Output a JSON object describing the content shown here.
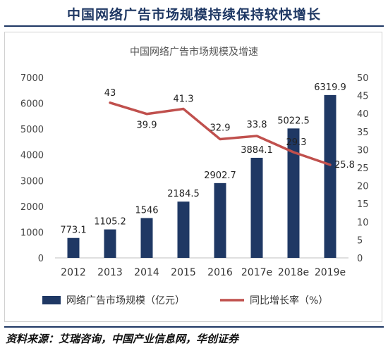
{
  "page": {
    "heading": "中国网络广告市场规模持续保持较快增长",
    "source": "资料来源：艾瑞咨询，中国产业信息网，华创证券"
  },
  "chart_data": {
    "type": "bar",
    "title": "中国网络广告市场规模及增速",
    "categories": [
      "2012",
      "2013",
      "2014",
      "2015",
      "2016",
      "2017e",
      "2018e",
      "2019e"
    ],
    "series": [
      {
        "name": "网络广告市场规模（亿元）",
        "type": "bar",
        "axis": "left",
        "color": "#1f3864",
        "values": [
          773.1,
          1105.2,
          1546,
          2184.5,
          2902.7,
          3884.1,
          5022.5,
          6319.9
        ],
        "labels": [
          "773.1",
          "1105.2",
          "1546",
          "2184.5",
          "2902.7",
          "3884.1",
          "5022.5",
          "6319.9"
        ]
      },
      {
        "name": "同比增长率（%）",
        "type": "line",
        "axis": "right",
        "color": "#c0504d",
        "values": [
          null,
          43,
          39.9,
          41.3,
          32.9,
          33.8,
          29.3,
          25.8
        ],
        "labels": [
          "",
          "43",
          "39.9",
          "41.3",
          "32.9",
          "33.8",
          "29.3",
          "25.8"
        ]
      }
    ],
    "y_left": {
      "min": 0,
      "max": 7000,
      "ticks": [
        0,
        1000,
        2000,
        3000,
        4000,
        5000,
        6000,
        7000
      ]
    },
    "y_right": {
      "min": 0,
      "max": 50,
      "ticks": [
        0,
        5,
        10,
        15,
        20,
        25,
        30,
        35,
        40,
        45,
        50
      ]
    },
    "grid": false,
    "legend_position": "bottom"
  }
}
